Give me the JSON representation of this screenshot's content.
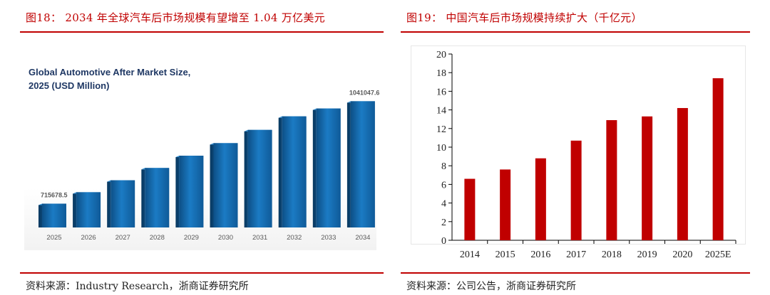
{
  "left_figure": {
    "title": "图18：  2034 年全球汽车后市场规模有望增至 1.04 万亿美元",
    "source": "资料来源：Industry Research，浙商证券研究所"
  },
  "right_figure": {
    "title": "图19：  中国汽车后市场规模持续扩大（千亿元）",
    "source": "资料来源：公司公告，浙商证券研究所"
  },
  "colors": {
    "accent_red": "#c00000",
    "bar_blue": "#1b75bb",
    "bar_red": "#c00000"
  },
  "chart_data": [
    {
      "type": "bar",
      "title": "Global Automotive After Market Size, 2025 (USD Million)",
      "title_lines": [
        "Global Automotive After Market Size,",
        "2025 (USD Million)"
      ],
      "categories": [
        "2025",
        "2026",
        "2027",
        "2028",
        "2029",
        "2030",
        "2031",
        "2032",
        "2033",
        "2034"
      ],
      "values": [
        715678.5,
        752000,
        790000,
        829000,
        868000,
        908000,
        950000,
        993000,
        1018000,
        1041047.6
      ],
      "data_labels": [
        {
          "index": 0,
          "text": "715678.5"
        },
        {
          "index": 9,
          "text": "1041047.6"
        }
      ],
      "xlabel": "",
      "ylabel": "",
      "ylim": [
        640000,
        1060000
      ],
      "grid": false,
      "legend": "none"
    },
    {
      "type": "bar",
      "title": "",
      "categories": [
        "2014",
        "2015",
        "2016",
        "2017",
        "2018",
        "2019",
        "2020",
        "2025E"
      ],
      "values": [
        6.6,
        7.6,
        8.8,
        10.7,
        12.9,
        13.3,
        14.2,
        17.4
      ],
      "xlabel": "",
      "ylabel": "",
      "ylim": [
        0,
        20
      ],
      "yticks": [
        0,
        2,
        4,
        6,
        8,
        10,
        12,
        14,
        16,
        18,
        20
      ],
      "grid": false,
      "legend": "none"
    }
  ]
}
